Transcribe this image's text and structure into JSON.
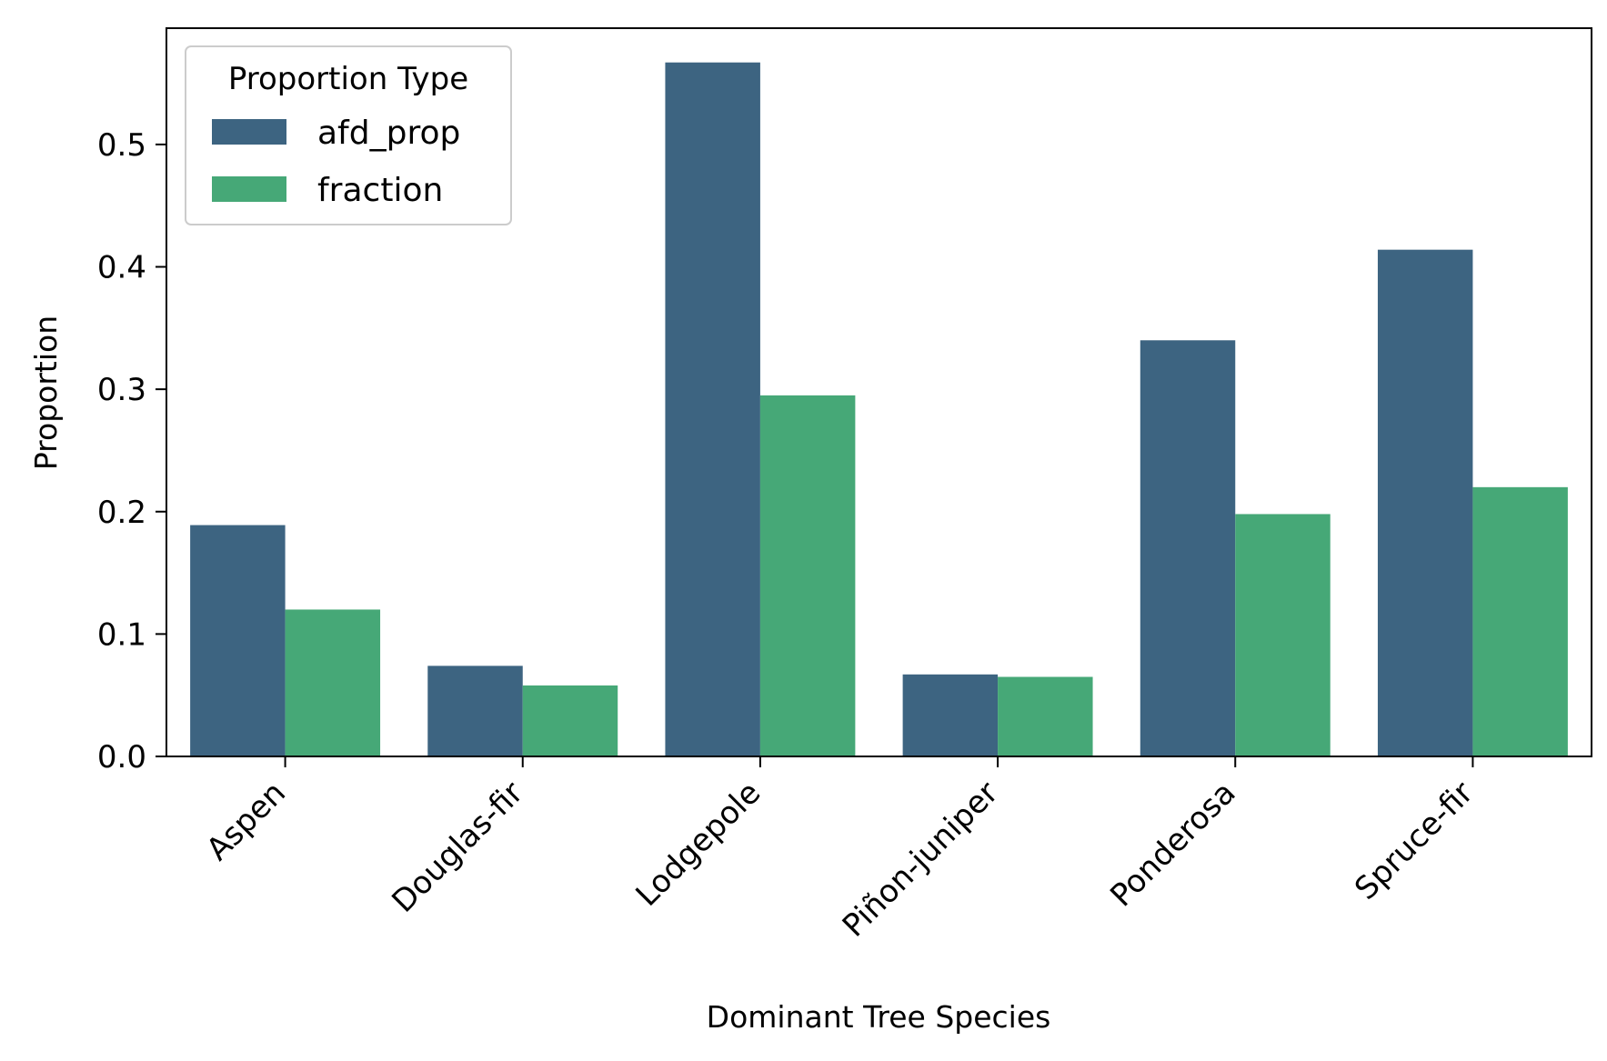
{
  "chart_data": {
    "type": "bar",
    "title": "",
    "xlabel": "Dominant Tree Species",
    "ylabel": "Proportion",
    "ylim": [
      0,
      0.595
    ],
    "yticks": [
      0.0,
      0.1,
      0.2,
      0.3,
      0.4,
      0.5
    ],
    "ytick_labels": [
      "0.0",
      "0.1",
      "0.2",
      "0.3",
      "0.4",
      "0.5"
    ],
    "categories": [
      "Aspen",
      "Douglas-fir",
      "Lodgepole",
      "Piñon-juniper",
      "Ponderosa",
      "Spruce-fir"
    ],
    "legend": {
      "title": "Proportion Type",
      "position": "top-left"
    },
    "grid": false,
    "series": [
      {
        "name": "afd_prop",
        "color": "#3d6481",
        "values": [
          0.189,
          0.074,
          0.567,
          0.067,
          0.34,
          0.414
        ]
      },
      {
        "name": "fraction",
        "color": "#46a877",
        "values": [
          0.12,
          0.058,
          0.295,
          0.065,
          0.198,
          0.22
        ]
      }
    ]
  }
}
